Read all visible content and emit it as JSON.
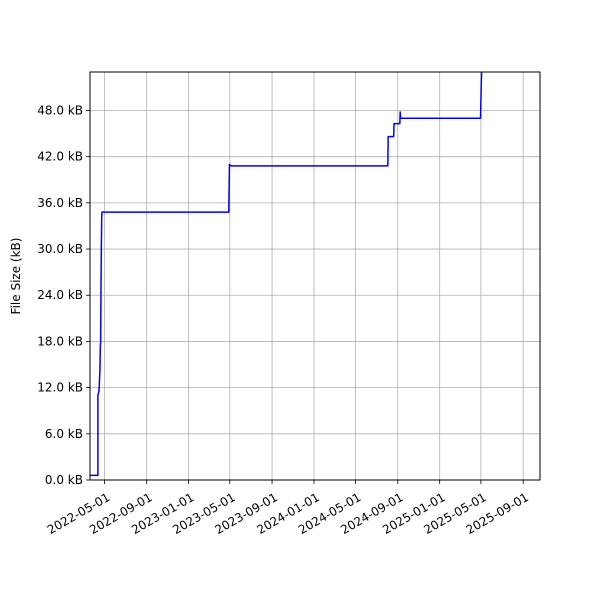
{
  "chart_data": {
    "type": "line",
    "title": "",
    "xlabel": "",
    "ylabel": "File Size (kB)",
    "grid": true,
    "line_color": "#0000ff",
    "grid_color": "#b0b0b0",
    "xlim": [
      "2022-03-20",
      "2025-10-20"
    ],
    "ylim": [
      0,
      53
    ],
    "x_ticks": [
      {
        "date": "2022-05-01",
        "label": "2022-05-01"
      },
      {
        "date": "2022-09-01",
        "label": "2022-09-01"
      },
      {
        "date": "2023-01-01",
        "label": "2023-01-01"
      },
      {
        "date": "2023-05-01",
        "label": "2023-05-01"
      },
      {
        "date": "2023-09-01",
        "label": "2023-09-01"
      },
      {
        "date": "2024-01-01",
        "label": "2024-01-01"
      },
      {
        "date": "2024-05-01",
        "label": "2024-05-01"
      },
      {
        "date": "2024-09-01",
        "label": "2024-09-01"
      },
      {
        "date": "2025-01-01",
        "label": "2025-01-01"
      },
      {
        "date": "2025-05-01",
        "label": "2025-05-01"
      },
      {
        "date": "2025-09-01",
        "label": "2025-09-01"
      }
    ],
    "y_ticks": [
      {
        "value": 0,
        "label": "0.0 kB"
      },
      {
        "value": 6,
        "label": "6.0 kB"
      },
      {
        "value": 12,
        "label": "12.0 kB"
      },
      {
        "value": 18,
        "label": "18.0 kB"
      },
      {
        "value": 24,
        "label": "24.0 kB"
      },
      {
        "value": 30,
        "label": "30.0 kB"
      },
      {
        "value": 36,
        "label": "36.0 kB"
      },
      {
        "value": 42,
        "label": "42.0 kB"
      },
      {
        "value": 48,
        "label": "48.0 kB"
      }
    ],
    "series": [
      {
        "points": [
          {
            "x": "2022-03-20",
            "y": 0.6
          },
          {
            "x": "2022-04-12",
            "y": 0.6
          },
          {
            "x": "2022-04-12",
            "y": 11.0
          },
          {
            "x": "2022-04-15",
            "y": 11.5
          },
          {
            "x": "2022-04-16",
            "y": 12.2
          },
          {
            "x": "2022-04-18",
            "y": 14.5
          },
          {
            "x": "2022-04-19",
            "y": 17.2
          },
          {
            "x": "2022-04-20",
            "y": 18.0
          },
          {
            "x": "2022-04-21",
            "y": 25.0
          },
          {
            "x": "2022-04-22",
            "y": 30.0
          },
          {
            "x": "2022-04-23",
            "y": 34.0
          },
          {
            "x": "2022-04-24",
            "y": 34.8
          },
          {
            "x": "2023-04-28",
            "y": 34.8
          },
          {
            "x": "2023-04-29",
            "y": 38.0
          },
          {
            "x": "2023-04-30",
            "y": 41.0
          },
          {
            "x": "2023-05-05",
            "y": 40.8
          },
          {
            "x": "2024-08-03",
            "y": 40.8
          },
          {
            "x": "2024-08-04",
            "y": 44.6
          },
          {
            "x": "2024-08-20",
            "y": 44.6
          },
          {
            "x": "2024-08-21",
            "y": 46.3
          },
          {
            "x": "2024-09-07",
            "y": 46.3
          },
          {
            "x": "2024-09-08",
            "y": 47.8
          },
          {
            "x": "2024-09-09",
            "y": 47.0
          },
          {
            "x": "2025-04-30",
            "y": 47.0
          },
          {
            "x": "2025-05-01",
            "y": 49.5
          },
          {
            "x": "2025-05-02",
            "y": 51.5
          },
          {
            "x": "2025-05-03",
            "y": 53.0
          }
        ]
      }
    ]
  }
}
